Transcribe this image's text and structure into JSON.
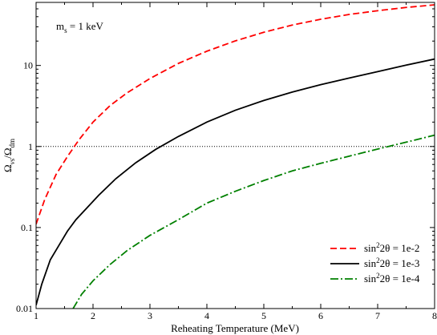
{
  "chart_data": {
    "type": "line",
    "title": "",
    "xlabel": "Reheating Temperature (MeV)",
    "ylabel_main": "Ω",
    "ylabel_sub1": "νs",
    "ylabel_mid": "/Ω",
    "ylabel_sub2": "dm",
    "annotation_main": "m",
    "annotation_sub": "s",
    "annotation_rest": " = 1 keV",
    "xlim": [
      1,
      8
    ],
    "ylim": [
      0.01,
      60
    ],
    "yscale": "log",
    "grid": false,
    "legend_position": "bottom-right",
    "x_ticks": [
      "1",
      "2",
      "3",
      "4",
      "5",
      "6",
      "7",
      "8"
    ],
    "y_ticks": [
      "0.01",
      "0.1",
      "1",
      "10"
    ],
    "reference_line": {
      "y": 1,
      "style": "dotted",
      "color": "#000000"
    },
    "series": [
      {
        "name_pre": "sin",
        "name_sup": "2",
        "name_post": "2θ = 1e-2",
        "color": "#ff0000",
        "dash": "8,4",
        "x": [
          1.0,
          1.15,
          1.35,
          1.55,
          1.75,
          2.0,
          2.3,
          2.6,
          3.0,
          3.5,
          4.0,
          4.5,
          5.0,
          5.5,
          6.0,
          6.5,
          7.0,
          7.5,
          8.0
        ],
        "y": [
          0.11,
          0.22,
          0.45,
          0.75,
          1.2,
          2.0,
          3.2,
          4.6,
          6.9,
          10.6,
          15.0,
          20.1,
          25.7,
          31.5,
          37.2,
          42.6,
          47.4,
          52.0,
          56.0
        ]
      },
      {
        "name_pre": "sin",
        "name_sup": "2",
        "name_post": "2θ = 1e-3",
        "color": "#000000",
        "dash": "",
        "x": [
          1.0,
          1.1,
          1.25,
          1.4,
          1.55,
          1.7,
          2.1,
          2.4,
          2.75,
          3.1,
          3.5,
          4.0,
          4.5,
          5.0,
          5.5,
          6.0,
          6.5,
          7.0,
          7.5,
          8.0
        ],
        "y": [
          0.011,
          0.02,
          0.04,
          0.06,
          0.09,
          0.125,
          0.25,
          0.4,
          0.63,
          0.92,
          1.33,
          2.0,
          2.8,
          3.7,
          4.7,
          5.8,
          7.0,
          8.4,
          10.1,
          12.0
        ]
      },
      {
        "name_pre": "sin",
        "name_sup": "2",
        "name_post": "2θ = 1e-4",
        "color": "#008000",
        "dash": "10,3,2,3",
        "x": [
          1.65,
          1.8,
          2.0,
          2.3,
          2.6,
          3.0,
          3.5,
          4.0,
          4.5,
          5.0,
          5.5,
          6.0,
          6.5,
          7.0,
          7.5,
          8.0
        ],
        "y": [
          0.01,
          0.015,
          0.022,
          0.035,
          0.052,
          0.08,
          0.125,
          0.2,
          0.28,
          0.38,
          0.5,
          0.62,
          0.76,
          0.93,
          1.13,
          1.38
        ]
      }
    ]
  }
}
